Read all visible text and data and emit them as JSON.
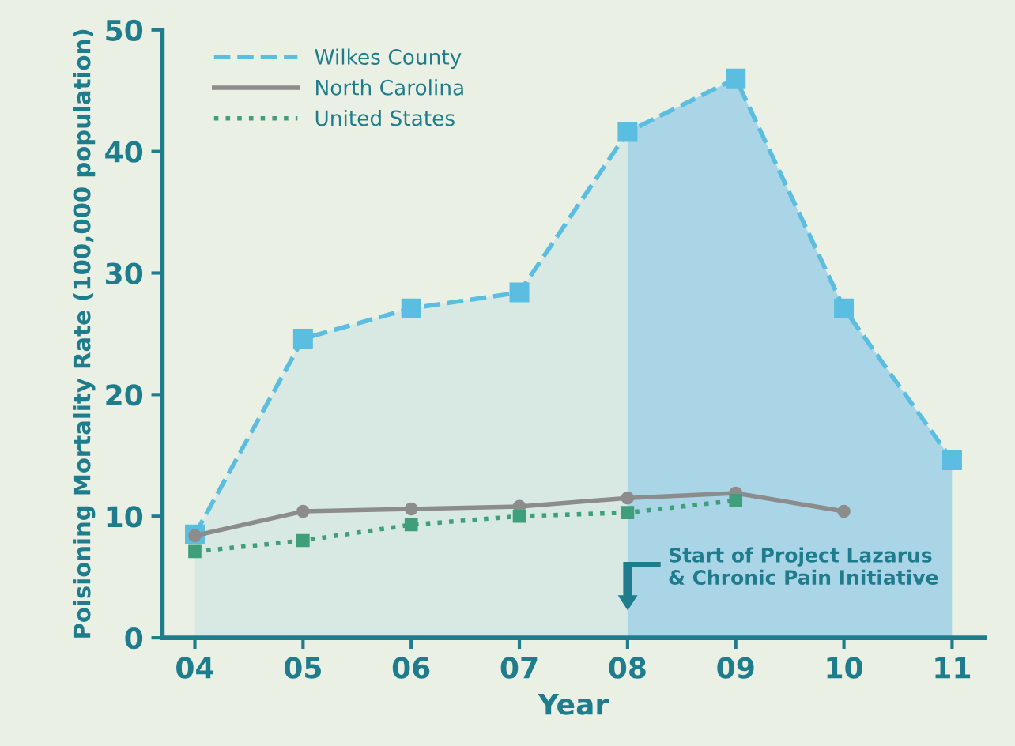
{
  "chart_data": {
    "type": "line",
    "xlabel": "Year",
    "ylabel": "Poisioning Mortality Rate (100,000 population)",
    "categories": [
      "04",
      "05",
      "06",
      "07",
      "08",
      "09",
      "10",
      "11"
    ],
    "series": [
      {
        "name": "Wilkes County",
        "type": "area",
        "color": "#5bbde0",
        "line_style": "dashed",
        "marker": "square",
        "values": [
          8.5,
          24.6,
          27.1,
          28.4,
          41.6,
          46.0,
          27.1,
          14.6
        ]
      },
      {
        "name": "North Carolina",
        "color": "#8c8c8c",
        "line_style": "solid",
        "marker": "circle",
        "values": [
          8.4,
          10.4,
          10.6,
          10.8,
          11.5,
          11.9,
          10.4,
          null
        ]
      },
      {
        "name": "United States",
        "color": "#3f9f7a",
        "line_style": "dotted",
        "marker": "square",
        "values": [
          7.1,
          8.0,
          9.3,
          10.0,
          10.3,
          11.3,
          null,
          null
        ]
      }
    ],
    "ylim": [
      0,
      50
    ],
    "yticks": [
      0,
      10,
      20,
      30,
      40,
      50
    ],
    "grid": false,
    "legend": "top left",
    "bands": [
      {
        "axis": "x",
        "from": "08",
        "to": "11",
        "color": "#a9d3ea"
      }
    ],
    "annotations": [
      "Start of Project Lazarus\n& Chronic Pain Initiative"
    ]
  }
}
